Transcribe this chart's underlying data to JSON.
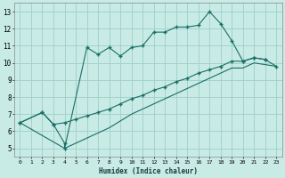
{
  "xlabel": "Humidex (Indice chaleur)",
  "xlim": [
    -0.5,
    23.5
  ],
  "ylim": [
    4.5,
    13.5
  ],
  "xticks": [
    0,
    1,
    2,
    3,
    4,
    5,
    6,
    7,
    8,
    9,
    10,
    11,
    12,
    13,
    14,
    15,
    16,
    17,
    18,
    19,
    20,
    21,
    22,
    23
  ],
  "yticks": [
    5,
    6,
    7,
    8,
    9,
    10,
    11,
    12,
    13
  ],
  "background_color": "#c8ebe6",
  "grid_color": "#9dcfc8",
  "line_color": "#1a6e65",
  "line1_x": [
    0,
    2,
    3,
    4,
    4,
    6,
    7,
    8,
    9,
    10,
    11,
    12,
    13,
    14,
    15,
    16,
    17,
    18,
    19,
    20,
    21,
    22
  ],
  "line1_y": [
    6.5,
    7.1,
    6.4,
    5.3,
    5.0,
    10.9,
    10.5,
    10.9,
    10.4,
    10.9,
    11.0,
    11.8,
    11.8,
    12.1,
    12.1,
    12.2,
    13.0,
    12.3,
    11.3,
    10.1,
    10.3,
    10.2
  ],
  "line2_x": [
    0,
    2,
    3,
    4,
    5,
    6,
    7,
    8,
    9,
    10,
    11,
    12,
    13,
    14,
    15,
    16,
    17,
    18,
    19,
    20,
    21,
    22,
    23
  ],
  "line2_y": [
    6.5,
    7.1,
    6.4,
    6.5,
    6.7,
    6.9,
    7.1,
    7.3,
    7.6,
    7.9,
    8.1,
    8.4,
    8.6,
    8.9,
    9.1,
    9.4,
    9.6,
    9.8,
    10.1,
    10.1,
    10.3,
    10.2,
    9.8
  ],
  "line3_x": [
    0,
    4,
    5,
    6,
    7,
    8,
    9,
    10,
    11,
    12,
    13,
    14,
    15,
    16,
    17,
    18,
    19,
    20,
    21,
    22,
    23
  ],
  "line3_y": [
    6.5,
    5.0,
    5.3,
    5.6,
    5.9,
    6.2,
    6.6,
    7.0,
    7.3,
    7.6,
    7.9,
    8.2,
    8.5,
    8.8,
    9.1,
    9.4,
    9.7,
    9.7,
    10.0,
    9.9,
    9.8
  ]
}
